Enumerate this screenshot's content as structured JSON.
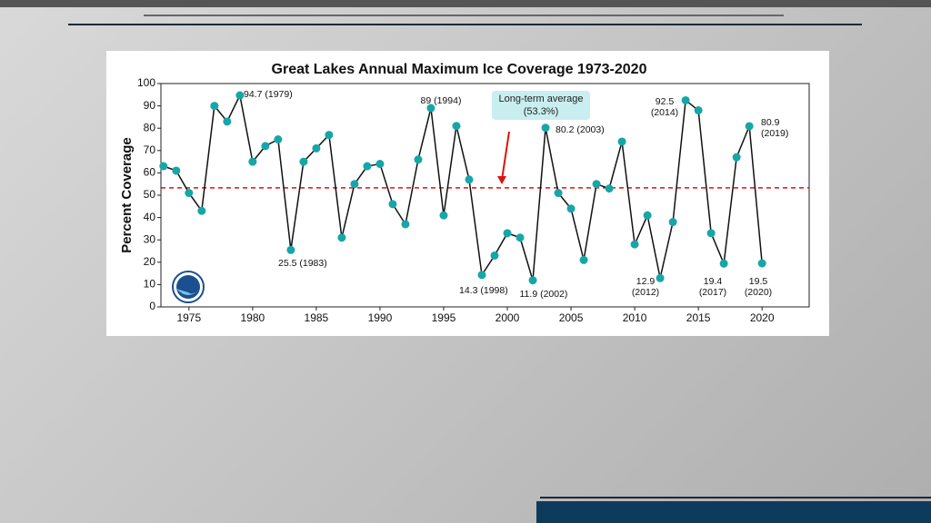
{
  "chart_data": {
    "type": "line",
    "title": "Great Lakes Annual Maximum Ice Coverage 1973-2020",
    "y_label": "Percent Coverage",
    "x": [
      1973,
      1974,
      1975,
      1976,
      1977,
      1978,
      1979,
      1980,
      1981,
      1982,
      1983,
      1984,
      1985,
      1986,
      1987,
      1988,
      1989,
      1990,
      1991,
      1992,
      1993,
      1994,
      1995,
      1996,
      1997,
      1998,
      1999,
      2000,
      2001,
      2002,
      2003,
      2004,
      2005,
      2006,
      2007,
      2008,
      2009,
      2010,
      2011,
      2012,
      2013,
      2014,
      2015,
      2016,
      2017,
      2018,
      2019,
      2020
    ],
    "series": [
      {
        "name": "Ice Coverage",
        "color": "#16a6a8",
        "line_color": "#111111",
        "values": [
          63,
          61,
          51,
          43,
          90,
          83,
          94.7,
          65,
          72,
          75,
          25.5,
          65,
          71,
          77,
          31,
          55,
          63,
          64,
          46,
          37,
          66,
          89,
          41,
          81,
          57,
          14.3,
          23,
          33,
          31,
          11.9,
          80.2,
          51,
          44,
          21,
          55,
          53,
          74,
          28,
          41,
          12.9,
          38,
          92.5,
          88,
          33,
          19.4,
          67,
          80.9,
          19.5
        ]
      }
    ],
    "average": 53.3,
    "average_color": "#e01010",
    "average_label": "Long-term average (53.3%)",
    "annotations": [
      "94.7 (1979)",
      "25.5 (1983)",
      "89 (1994)",
      "14.3 (1998)",
      "11.9 (2002)",
      "80.2 (2003)",
      "12.9 (2012)",
      "92.5 (2014)",
      "19.4 (2017)",
      "80.9 (2019)",
      "19.5 (2020)"
    ],
    "xlim": [
      1972.8,
      2023.7
    ],
    "xticks": [
      1975,
      1980,
      1985,
      1990,
      1995,
      2000,
      2005,
      2010,
      2015,
      2020
    ],
    "ylim": [
      0,
      100
    ],
    "yticks": [
      0,
      10,
      20,
      30,
      40,
      50,
      60,
      70,
      80,
      90,
      100
    ]
  }
}
